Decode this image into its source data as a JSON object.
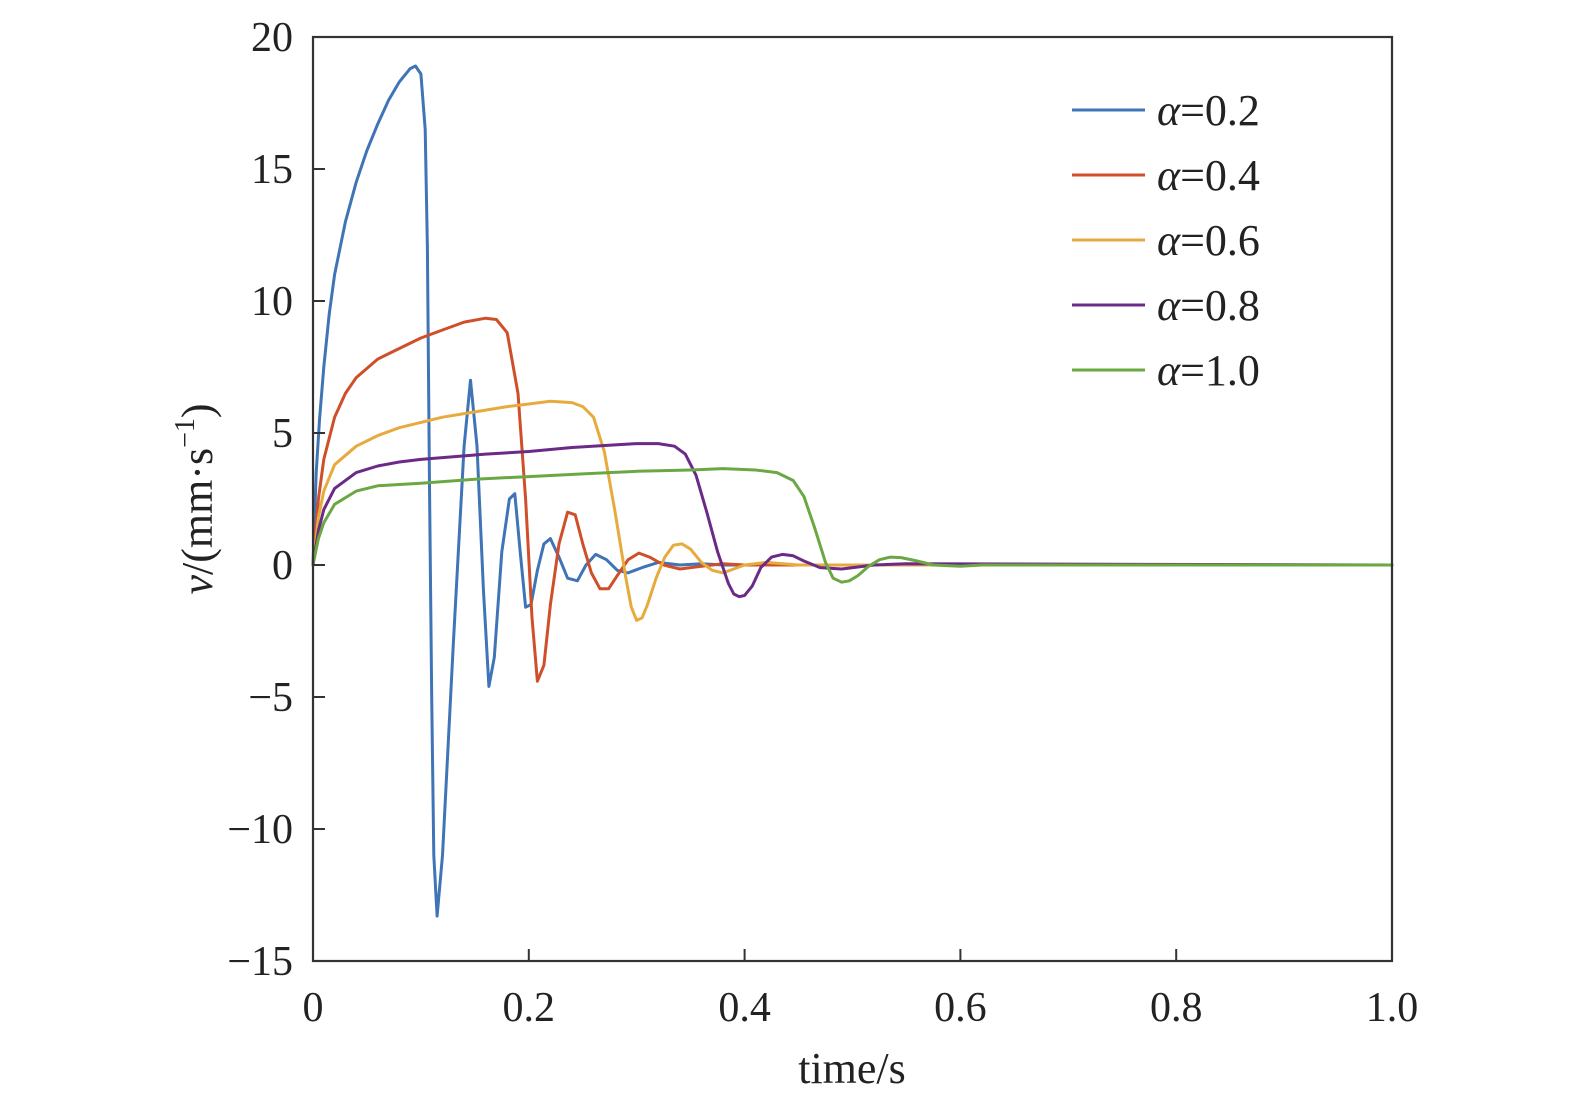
{
  "chart_data": {
    "type": "line",
    "xlabel": "time/s",
    "ylabel": {
      "symbol": "v",
      "prefix": "/(mm·s",
      "exponent": "−1",
      "suffix": ")"
    },
    "xlim": [
      0,
      1.0
    ],
    "ylim": [
      -15,
      20
    ],
    "xticks": [
      0,
      0.2,
      0.4,
      0.6,
      0.8,
      1.0
    ],
    "xtick_labels": [
      "0",
      "0.2",
      "0.4",
      "0.6",
      "0.8",
      "1.0"
    ],
    "yticks": [
      20,
      15,
      10,
      5,
      0,
      -5,
      -10,
      -15
    ],
    "ytick_labels": [
      "20",
      "15",
      "10",
      "5",
      "0",
      "−5",
      "−10",
      "−15"
    ],
    "grid": false,
    "legend_position": "top-right",
    "series": [
      {
        "name": "α=0.2",
        "symbol": "α",
        "value": "=0.2",
        "color": "#3f74b6",
        "x": [
          0,
          0.003,
          0.006,
          0.01,
          0.015,
          0.02,
          0.03,
          0.04,
          0.05,
          0.06,
          0.07,
          0.08,
          0.09,
          0.095,
          0.1,
          0.104,
          0.106,
          0.108,
          0.11,
          0.112,
          0.115,
          0.12,
          0.13,
          0.14,
          0.146,
          0.152,
          0.158,
          0.163,
          0.168,
          0.175,
          0.182,
          0.187,
          0.192,
          0.197,
          0.202,
          0.208,
          0.214,
          0.22,
          0.228,
          0.236,
          0.245,
          0.253,
          0.262,
          0.272,
          0.282,
          0.292,
          0.305,
          0.32,
          0.34,
          0.36,
          0.38,
          0.4,
          0.45,
          0.5,
          1.0
        ],
        "y": [
          0,
          3.5,
          5.5,
          7.5,
          9.5,
          11,
          13,
          14.5,
          15.7,
          16.7,
          17.6,
          18.3,
          18.8,
          18.9,
          18.6,
          16.5,
          12,
          3,
          -5,
          -11,
          -13.3,
          -11,
          -3,
          4.5,
          7,
          4.5,
          -1,
          -4.6,
          -3.5,
          0.5,
          2.5,
          2.7,
          0.5,
          -1.6,
          -1.5,
          -0.2,
          0.8,
          1,
          0.3,
          -0.5,
          -0.6,
          0,
          0.4,
          0.2,
          -0.2,
          -0.3,
          -0.1,
          0.1,
          0,
          0.05,
          0,
          0,
          0,
          0,
          0
        ]
      },
      {
        "name": "α=0.4",
        "symbol": "α",
        "value": "=0.4",
        "color": "#cf4f2a",
        "x": [
          0,
          0.005,
          0.01,
          0.02,
          0.03,
          0.04,
          0.06,
          0.08,
          0.1,
          0.12,
          0.14,
          0.16,
          0.17,
          0.18,
          0.19,
          0.197,
          0.203,
          0.208,
          0.214,
          0.22,
          0.228,
          0.236,
          0.243,
          0.25,
          0.258,
          0.266,
          0.274,
          0.282,
          0.292,
          0.302,
          0.312,
          0.325,
          0.34,
          0.36,
          0.38,
          0.4,
          0.45,
          0.5,
          1.0
        ],
        "y": [
          0,
          2.5,
          4,
          5.6,
          6.5,
          7.1,
          7.8,
          8.2,
          8.6,
          8.9,
          9.2,
          9.35,
          9.3,
          8.8,
          6.5,
          2.5,
          -2,
          -4.4,
          -3.8,
          -1.5,
          0.8,
          2,
          1.9,
          0.8,
          -0.3,
          -0.9,
          -0.9,
          -0.4,
          0.2,
          0.45,
          0.3,
          0,
          -0.15,
          -0.05,
          0.05,
          0,
          0,
          0,
          0
        ]
      },
      {
        "name": "α=0.6",
        "symbol": "α",
        "value": "=0.6",
        "color": "#e6ab3c",
        "x": [
          0,
          0.005,
          0.01,
          0.02,
          0.04,
          0.06,
          0.08,
          0.1,
          0.12,
          0.15,
          0.18,
          0.2,
          0.22,
          0.24,
          0.25,
          0.26,
          0.27,
          0.28,
          0.29,
          0.295,
          0.3,
          0.305,
          0.31,
          0.318,
          0.326,
          0.334,
          0.342,
          0.35,
          0.36,
          0.37,
          0.38,
          0.39,
          0.4,
          0.42,
          0.45,
          0.5,
          1.0
        ],
        "y": [
          0,
          1.8,
          2.8,
          3.8,
          4.5,
          4.9,
          5.2,
          5.4,
          5.6,
          5.8,
          6,
          6.1,
          6.2,
          6.15,
          6,
          5.6,
          4.3,
          2,
          -0.5,
          -1.6,
          -2.1,
          -2,
          -1.5,
          -0.5,
          0.3,
          0.75,
          0.8,
          0.6,
          0.1,
          -0.2,
          -0.3,
          -0.15,
          0,
          0.1,
          0,
          0,
          0
        ]
      },
      {
        "name": "α=0.8",
        "symbol": "α",
        "value": "=0.8",
        "color": "#6b2a86",
        "x": [
          0,
          0.005,
          0.01,
          0.02,
          0.04,
          0.06,
          0.08,
          0.1,
          0.13,
          0.16,
          0.2,
          0.24,
          0.28,
          0.3,
          0.32,
          0.335,
          0.345,
          0.355,
          0.365,
          0.375,
          0.385,
          0.39,
          0.395,
          0.4,
          0.407,
          0.415,
          0.425,
          0.435,
          0.445,
          0.455,
          0.47,
          0.49,
          0.52,
          0.55,
          1.0
        ],
        "y": [
          0,
          1.3,
          2.1,
          2.9,
          3.5,
          3.75,
          3.9,
          4,
          4.1,
          4.2,
          4.3,
          4.45,
          4.55,
          4.6,
          4.6,
          4.5,
          4.2,
          3.4,
          2,
          0.5,
          -0.7,
          -1.1,
          -1.2,
          -1.15,
          -0.8,
          -0.1,
          0.3,
          0.4,
          0.35,
          0.15,
          -0.1,
          -0.15,
          0,
          0.05,
          0
        ]
      },
      {
        "name": "α=1.0",
        "symbol": "α",
        "value": "=1.0",
        "color": "#6ba844",
        "x": [
          0,
          0.005,
          0.01,
          0.02,
          0.04,
          0.06,
          0.08,
          0.1,
          0.15,
          0.2,
          0.25,
          0.3,
          0.35,
          0.38,
          0.41,
          0.43,
          0.445,
          0.455,
          0.465,
          0.475,
          0.482,
          0.49,
          0.497,
          0.505,
          0.515,
          0.525,
          0.535,
          0.545,
          0.56,
          0.575,
          0.6,
          0.62,
          0.65,
          1.0
        ],
        "y": [
          0,
          1,
          1.6,
          2.3,
          2.8,
          3,
          3.05,
          3.1,
          3.25,
          3.35,
          3.45,
          3.55,
          3.6,
          3.65,
          3.6,
          3.5,
          3.2,
          2.6,
          1.4,
          0.1,
          -0.5,
          -0.65,
          -0.6,
          -0.4,
          -0.05,
          0.2,
          0.3,
          0.28,
          0.15,
          0,
          -0.05,
          0,
          0,
          0
        ]
      }
    ]
  }
}
